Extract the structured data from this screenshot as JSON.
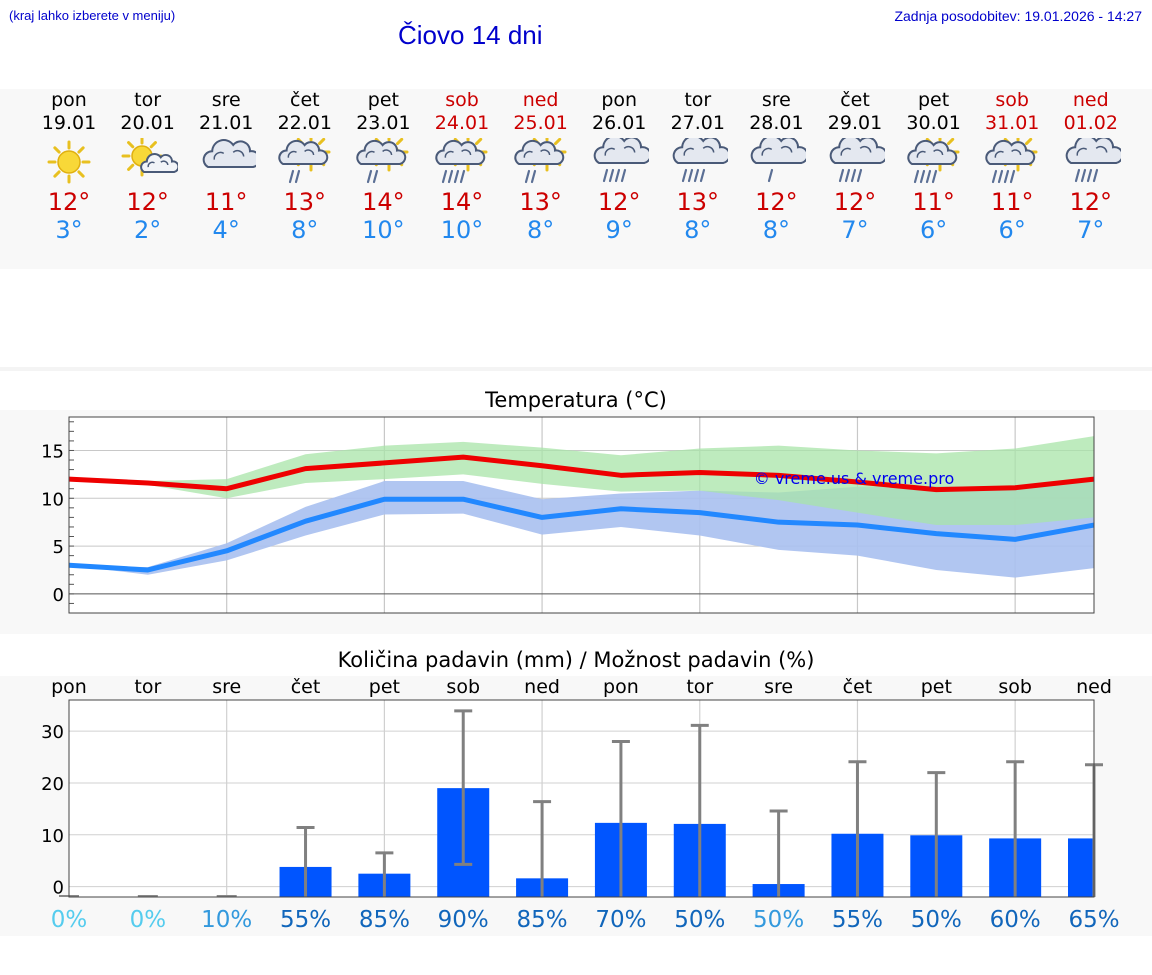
{
  "header": {
    "hint": "(kraj lahko izberete v meniju)",
    "title": "Čiovo 14 dni",
    "updated": "Zadnja posodobitev: 19.01.2026 - 14:27"
  },
  "days": [
    {
      "name": "pon",
      "date": "19.01",
      "hi": "12°",
      "lo": "3°",
      "icon": "sun-icon",
      "weekend": false
    },
    {
      "name": "tor",
      "date": "20.01",
      "hi": "12°",
      "lo": "2°",
      "icon": "sun-cloud-icon",
      "weekend": false
    },
    {
      "name": "sre",
      "date": "21.01",
      "hi": "11°",
      "lo": "4°",
      "icon": "cloud-icon",
      "weekend": false
    },
    {
      "name": "čet",
      "date": "22.01",
      "hi": "13°",
      "lo": "8°",
      "icon": "sun-cloud-rain-icon",
      "weekend": false
    },
    {
      "name": "pet",
      "date": "23.01",
      "hi": "14°",
      "lo": "10°",
      "icon": "sun-cloud-rain-icon",
      "weekend": false
    },
    {
      "name": "sob",
      "date": "24.01",
      "hi": "14°",
      "lo": "10°",
      "icon": "sun-cloud-heavy-rain-icon",
      "weekend": true
    },
    {
      "name": "ned",
      "date": "25.01",
      "hi": "13°",
      "lo": "8°",
      "icon": "sun-cloud-rain-icon",
      "weekend": true
    },
    {
      "name": "pon",
      "date": "26.01",
      "hi": "12°",
      "lo": "9°",
      "icon": "cloud-heavy-rain-icon",
      "weekend": false
    },
    {
      "name": "tor",
      "date": "27.01",
      "hi": "13°",
      "lo": "8°",
      "icon": "cloud-heavy-rain-icon",
      "weekend": false
    },
    {
      "name": "sre",
      "date": "28.01",
      "hi": "12°",
      "lo": "8°",
      "icon": "cloud-rain-icon",
      "weekend": false
    },
    {
      "name": "čet",
      "date": "29.01",
      "hi": "12°",
      "lo": "7°",
      "icon": "cloud-heavy-rain-icon",
      "weekend": false
    },
    {
      "name": "pet",
      "date": "30.01",
      "hi": "11°",
      "lo": "6°",
      "icon": "sun-cloud-heavy-rain-icon",
      "weekend": false
    },
    {
      "name": "sob",
      "date": "31.01",
      "hi": "11°",
      "lo": "6°",
      "icon": "sun-cloud-heavy-rain-icon",
      "weekend": true
    },
    {
      "name": "ned",
      "date": "01.02",
      "hi": "12°",
      "lo": "7°",
      "icon": "cloud-heavy-rain-icon",
      "weekend": true
    }
  ],
  "chart_data": [
    {
      "type": "line",
      "title": "Temperatura (°C)",
      "watermark": "© vreme.us & vreme.pro",
      "categories": [
        "19.01",
        "20.01",
        "21.01",
        "22.01",
        "23.01",
        "24.01",
        "25.01",
        "26.01",
        "27.01",
        "28.01",
        "29.01",
        "30.01",
        "31.01",
        "01.02"
      ],
      "x": [
        0,
        1,
        2,
        3,
        4,
        5,
        6,
        7,
        8,
        9,
        10,
        11,
        12,
        13
      ],
      "ylim": [
        -2,
        18.5
      ],
      "yticks": [
        0,
        5,
        10,
        15
      ],
      "grid": true,
      "colors": {
        "max": "#ee0000",
        "min": "#2288ff",
        "max_band": "#a8e4a8",
        "min_band": "#a8c0f0",
        "overlap": "#7fb8a8"
      },
      "series": [
        {
          "name": "max",
          "values": [
            12.0,
            11.6,
            11.0,
            13.1,
            13.7,
            14.3,
            13.4,
            12.4,
            12.7,
            12.4,
            11.7,
            10.9,
            11.1,
            12.0
          ]
        },
        {
          "name": "max_upper",
          "values": [
            12.0,
            11.8,
            12.0,
            14.6,
            15.5,
            15.9,
            15.3,
            14.5,
            15.2,
            15.5,
            15.0,
            14.7,
            15.2,
            16.5
          ]
        },
        {
          "name": "max_lower",
          "values": [
            12.0,
            11.4,
            10.0,
            11.6,
            12.0,
            12.5,
            11.5,
            10.7,
            10.8,
            9.8,
            8.5,
            7.2,
            7.2,
            8.0
          ]
        },
        {
          "name": "min",
          "values": [
            3.0,
            2.5,
            4.5,
            7.6,
            9.9,
            9.9,
            8.0,
            8.9,
            8.5,
            7.5,
            7.2,
            6.3,
            5.7,
            7.2
          ]
        },
        {
          "name": "min_upper",
          "values": [
            3.0,
            2.8,
            5.3,
            9.1,
            11.8,
            11.8,
            9.9,
            10.5,
            10.8,
            10.6,
            11.2,
            11.3,
            11.1,
            12.2
          ]
        },
        {
          "name": "min_lower",
          "values": [
            3.0,
            2.0,
            3.5,
            6.1,
            8.3,
            8.4,
            6.2,
            7.0,
            6.1,
            4.6,
            4.0,
            2.5,
            1.7,
            2.7
          ]
        }
      ]
    },
    {
      "type": "bar",
      "title": "Količina padavin (mm) / Možnost padavin (%)",
      "categories": [
        "pon",
        "tor",
        "sre",
        "čet",
        "pet",
        "sob",
        "ned",
        "pon",
        "tor",
        "sre",
        "čet",
        "pet",
        "sob",
        "ned"
      ],
      "ylim": [
        -2,
        36
      ],
      "yticks": [
        0,
        10,
        20,
        30
      ],
      "grid": true,
      "bar_color": "#0055ff",
      "error_color": "#808080",
      "values": [
        0,
        0,
        0,
        3.8,
        2.5,
        19.0,
        1.6,
        12.3,
        12.1,
        0.5,
        10.2,
        9.9,
        9.3,
        9.3
      ],
      "err_low": [
        0,
        0,
        0,
        0,
        0,
        4.3,
        0,
        0,
        0,
        0,
        0,
        0,
        0,
        0
      ],
      "err_high": [
        0,
        0,
        0,
        11.4,
        6.5,
        33.9,
        16.4,
        28.0,
        31.1,
        14.6,
        24.1,
        22.0,
        24.1,
        23.5
      ],
      "probability": [
        "0%",
        "0%",
        "10%",
        "55%",
        "85%",
        "90%",
        "85%",
        "70%",
        "50%",
        "50%",
        "55%",
        "50%",
        "60%",
        "65%"
      ],
      "probability_colors": [
        "#55ccee",
        "#55ccee",
        "#3399dd",
        "#1166bb",
        "#1166bb",
        "#1166bb",
        "#1166bb",
        "#1166bb",
        "#1166bb",
        "#3399dd",
        "#1166bb",
        "#1166bb",
        "#1166bb",
        "#1166bb"
      ]
    }
  ]
}
